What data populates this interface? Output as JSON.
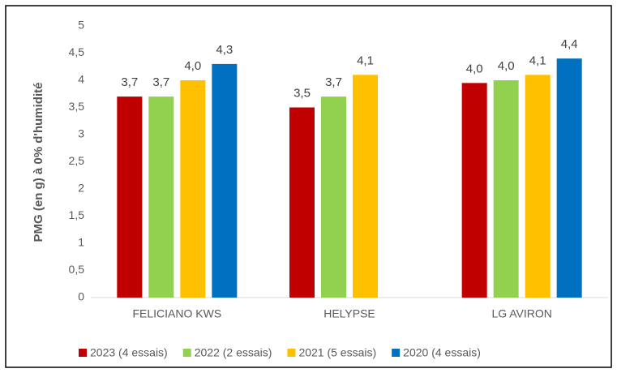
{
  "chart_data": {
    "type": "bar",
    "y_label": "PMG (en g) à 0% d'humidité",
    "categories": [
      "FELICIANO KWS",
      "HELYPSE",
      "LG AVIRON"
    ],
    "series": [
      {
        "name": "2023 (4 essais)",
        "color": "#c00000",
        "values": [
          3.7,
          3.5,
          3.95
        ],
        "value_labels": [
          "3,7",
          "3,5",
          "4,0"
        ]
      },
      {
        "name": "2022 (2 essais)",
        "color": "#92d050",
        "values": [
          3.7,
          3.7,
          4.0
        ],
        "value_labels": [
          "3,7",
          "3,7",
          "4,0"
        ]
      },
      {
        "name": "2021 (5 essais)",
        "color": "#ffc000",
        "values": [
          4.0,
          4.1,
          4.1
        ],
        "value_labels": [
          "4,0",
          "4,1",
          "4,1"
        ]
      },
      {
        "name": "2020 (4 essais)",
        "color": "#0070c0",
        "values": [
          4.3,
          null,
          4.4
        ],
        "value_labels": [
          "4,3",
          null,
          "4,4"
        ]
      }
    ],
    "ylim": [
      0,
      5
    ],
    "yticks": [
      0,
      {
        "value": 0.5,
        "label": "0,5"
      },
      1,
      {
        "value": 1.5,
        "label": "1,5"
      },
      2,
      {
        "value": 2.5,
        "label": "2,5"
      },
      3,
      {
        "value": 3.5,
        "label": "3,5"
      },
      4,
      {
        "value": 4.5,
        "label": "4,5"
      },
      5
    ],
    "grid": false
  }
}
